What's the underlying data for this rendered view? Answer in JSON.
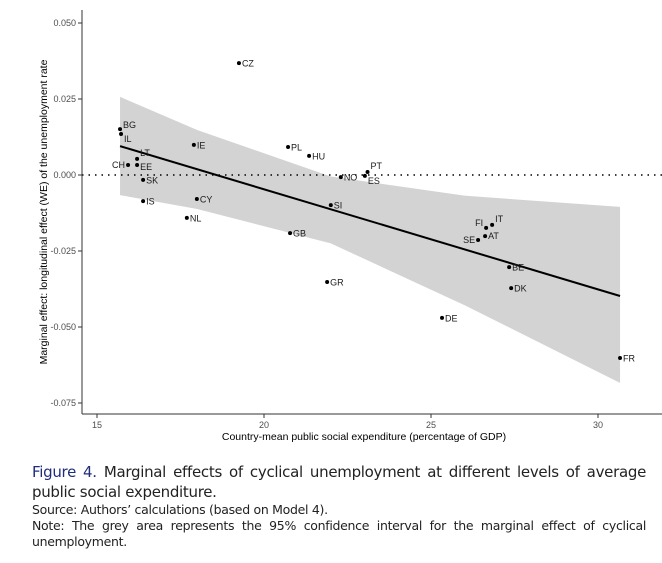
{
  "chart_data": {
    "type": "scatter",
    "xlabel": "Country-mean public social expenditure (percentage of GDP)",
    "ylabel": "Marginal effect: longitudinal effect (WE) of the unemployment rate",
    "xlim": [
      14.55,
      31.25
    ],
    "ylim": [
      -0.079,
      0.0525
    ],
    "xticks": [
      15,
      20,
      25,
      30
    ],
    "xtick_labels": [
      "15",
      "20",
      "25",
      "30"
    ],
    "yticks": [
      0.05,
      0.025,
      0,
      -0.025,
      -0.05,
      -0.075
    ],
    "ytick_labels": [
      "0.050",
      "0.025",
      "0.000",
      "-0.025",
      "-0.050",
      "-0.075"
    ],
    "reference_line_y": 0,
    "points": [
      {
        "label": "BG",
        "x": 15.69,
        "y": 0.0151
      },
      {
        "label": "IL",
        "x": 15.72,
        "y": 0.0135
      },
      {
        "label": "LT",
        "x": 16.2,
        "y": 0.0053
      },
      {
        "label": "CH",
        "x": 15.93,
        "y": 0.0033
      },
      {
        "label": "EE",
        "x": 16.2,
        "y": 0.0033
      },
      {
        "label": "SK",
        "x": 16.38,
        "y": -0.0016
      },
      {
        "label": "IS",
        "x": 16.38,
        "y": -0.0086
      },
      {
        "label": "IE",
        "x": 17.9,
        "y": 0.0099
      },
      {
        "label": "CY",
        "x": 17.99,
        "y": -0.0079
      },
      {
        "label": "NL",
        "x": 17.69,
        "y": -0.0141
      },
      {
        "label": "CZ",
        "x": 19.25,
        "y": 0.0368
      },
      {
        "label": "PL",
        "x": 20.72,
        "y": 0.0092
      },
      {
        "label": "HU",
        "x": 21.35,
        "y": 0.0063
      },
      {
        "label": "NO",
        "x": 22.3,
        "y": -0.0007
      },
      {
        "label": "PT",
        "x": 23.1,
        "y": 0.001
      },
      {
        "label": "ES",
        "x": 23.02,
        "y": -0.0003
      },
      {
        "label": "SI",
        "x": 22.0,
        "y": -0.0099
      },
      {
        "label": "GB",
        "x": 20.78,
        "y": -0.0191
      },
      {
        "label": "GR",
        "x": 21.89,
        "y": -0.0352
      },
      {
        "label": "DE",
        "x": 25.33,
        "y": -0.047
      },
      {
        "label": "IT",
        "x": 26.83,
        "y": -0.0164
      },
      {
        "label": "FI",
        "x": 26.65,
        "y": -0.0174
      },
      {
        "label": "AT",
        "x": 26.62,
        "y": -0.0201
      },
      {
        "label": "SE",
        "x": 26.41,
        "y": -0.0214
      },
      {
        "label": "BE",
        "x": 27.34,
        "y": -0.0303
      },
      {
        "label": "DK",
        "x": 27.4,
        "y": -0.0372
      },
      {
        "label": "FR",
        "x": 30.66,
        "y": -0.0602
      }
    ],
    "fit_line": {
      "x": [
        15.69,
        30.66
      ],
      "y": [
        0.0095,
        -0.0398
      ]
    },
    "confidence_band": {
      "level": "95%",
      "x": [
        15.69,
        18,
        22,
        26,
        30.66
      ],
      "lower": [
        -0.0066,
        -0.0112,
        -0.0225,
        -0.0428,
        -0.0684
      ],
      "upper": [
        0.0257,
        0.0148,
        -0.0005,
        -0.0068,
        -0.0105
      ]
    },
    "colors": {
      "band": "#d3d3d3",
      "line": "#000000",
      "points": "#000000"
    }
  },
  "caption": {
    "figure_number": "Figure 4.",
    "title": "Marginal effects of cyclical unemployment at different levels of average public social expenditure.",
    "source": "Source: Authors’ calculations (based on Model 4).",
    "note": "Note: The grey area represents the 95% confidence interval for the marginal effect of cyclical unemployment."
  }
}
